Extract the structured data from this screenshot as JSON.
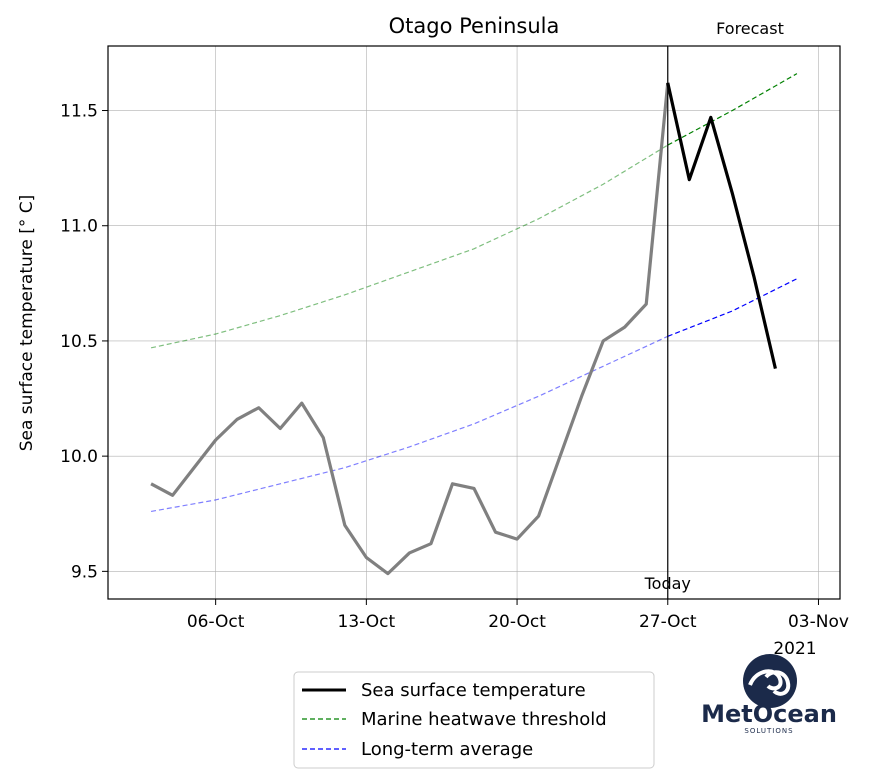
{
  "chart_data": {
    "type": "line",
    "title": "Otago Peninsula",
    "ylabel": "Sea surface temperature [$^\\circ$C]",
    "xlabel": "",
    "ylim": [
      9.38,
      11.78
    ],
    "xlim": [
      "2021-10-01",
      "2021-11-04"
    ],
    "x_ticks": [
      {
        "date": "2021-10-06",
        "label": "06-Oct"
      },
      {
        "date": "2021-10-13",
        "label": "13-Oct"
      },
      {
        "date": "2021-10-20",
        "label": "20-Oct"
      },
      {
        "date": "2021-10-27",
        "label": "27-Oct"
      },
      {
        "date": "2021-11-03",
        "label": "03-Nov"
      }
    ],
    "x_offset_label": "2021",
    "y_ticks": [
      9.5,
      10.0,
      10.5,
      11.0,
      11.5
    ],
    "y_tick_labels": [
      "9.5",
      "10.0",
      "10.5",
      "11.0",
      "11.5"
    ],
    "grid": true,
    "today": "2021-10-27",
    "today_label": "Today",
    "forecast_label": "Forecast",
    "series": [
      {
        "name": "Sea surface temperature",
        "color_history": "#808080",
        "color_forecast": "#000000",
        "x": [
          "2021-10-03",
          "2021-10-04",
          "2021-10-05",
          "2021-10-06",
          "2021-10-07",
          "2021-10-08",
          "2021-10-09",
          "2021-10-10",
          "2021-10-11",
          "2021-10-12",
          "2021-10-13",
          "2021-10-14",
          "2021-10-15",
          "2021-10-16",
          "2021-10-17",
          "2021-10-18",
          "2021-10-19",
          "2021-10-20",
          "2021-10-21",
          "2021-10-22",
          "2021-10-23",
          "2021-10-24",
          "2021-10-25",
          "2021-10-26",
          "2021-10-27",
          "2021-10-28",
          "2021-10-29",
          "2021-10-30",
          "2021-10-31",
          "2021-11-01",
          "2021-11-02"
        ],
        "values": [
          9.88,
          9.83,
          9.95,
          10.07,
          10.16,
          10.21,
          10.12,
          10.23,
          10.08,
          9.7,
          9.56,
          9.49,
          9.58,
          9.62,
          9.88,
          9.86,
          9.67,
          9.64,
          9.74,
          10.0,
          10.26,
          10.5,
          10.56,
          10.66,
          11.62,
          11.2,
          11.47,
          11.14,
          10.78,
          10.38,
          null
        ]
      },
      {
        "name": "Marine heatwave threshold",
        "color": "#008000",
        "style": "dashed",
        "x": [
          "2021-10-03",
          "2021-10-06",
          "2021-10-09",
          "2021-10-12",
          "2021-10-15",
          "2021-10-18",
          "2021-10-21",
          "2021-10-24",
          "2021-10-27",
          "2021-10-30",
          "2021-11-02"
        ],
        "values": [
          10.47,
          10.53,
          10.61,
          10.7,
          10.8,
          10.9,
          11.03,
          11.18,
          11.35,
          11.5,
          11.66
        ]
      },
      {
        "name": "Long-term average",
        "color": "#0000ff",
        "style": "dashed",
        "x": [
          "2021-10-03",
          "2021-10-06",
          "2021-10-09",
          "2021-10-12",
          "2021-10-15",
          "2021-10-18",
          "2021-10-21",
          "2021-10-24",
          "2021-10-27",
          "2021-10-30",
          "2021-11-02"
        ],
        "values": [
          9.76,
          9.81,
          9.88,
          9.95,
          10.04,
          10.14,
          10.26,
          10.39,
          10.52,
          10.63,
          10.77
        ]
      }
    ],
    "legend": {
      "placement": "bottom-center",
      "entries": [
        {
          "label": "Sea surface temperature",
          "color": "#000000",
          "style": "solid"
        },
        {
          "label": "Marine heatwave threshold",
          "color": "#008000",
          "style": "dashed"
        },
        {
          "label": "Long-term average",
          "color": "#0000ff",
          "style": "dashed"
        }
      ]
    }
  },
  "logo": {
    "text": "MetOcean",
    "subtext": "SOLUTIONS",
    "color": "#1b2a4a",
    "icon": "wave-logo-icon"
  }
}
